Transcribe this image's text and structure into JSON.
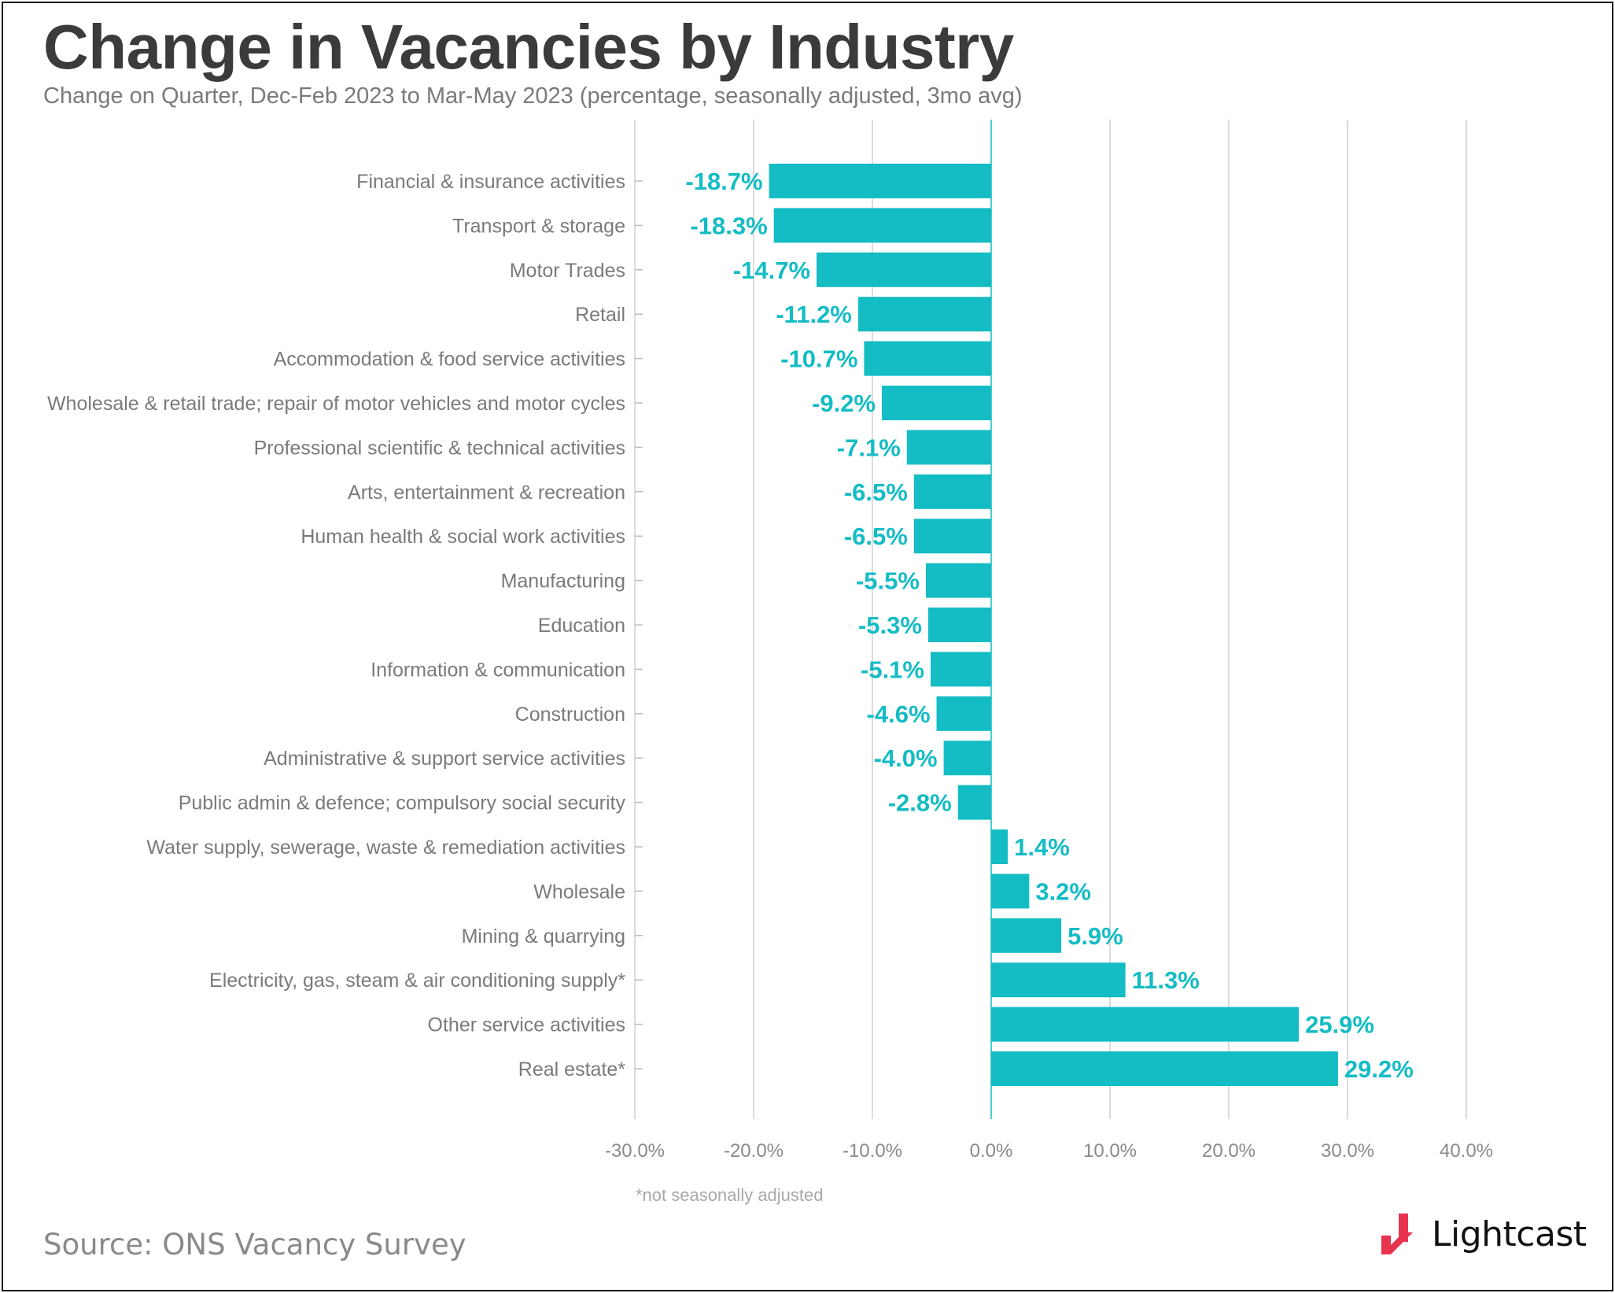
{
  "title": "Change in Vacancies by Industry",
  "subtitle": "Change on Quarter, Dec-Feb 2023 to Mar-May 2023 (percentage, seasonally adjusted, 3mo avg)",
  "footnote": "*not seasonally adjusted",
  "source": "Source: ONS Vacancy Survey",
  "brand": {
    "name": "Lightcast",
    "icon": "lightcast-logo-icon"
  },
  "colors": {
    "bar": "#14bcc4",
    "label": "#14bcc4",
    "grid": "#cfcfcf",
    "text": "#7a7a7a"
  },
  "chart_data": {
    "type": "bar",
    "orientation": "horizontal",
    "categories": [
      "Financial & insurance activities",
      "Transport & storage",
      "Motor Trades",
      "Retail",
      "Accommodation & food service activities",
      "Wholesale & retail trade; repair of motor vehicles and motor cycles",
      "Professional scientific & technical activities",
      "Arts, entertainment & recreation",
      "Human health & social work activities",
      "Manufacturing",
      "Education",
      "Information & communication",
      "Construction",
      "Administrative & support service activities",
      "Public admin & defence; compulsory social security",
      "Water supply, sewerage, waste & remediation activities",
      "Wholesale",
      "Mining & quarrying",
      "Electricity, gas, steam & air conditioning supply*",
      "Other service activities",
      "Real estate*"
    ],
    "values": [
      -18.7,
      -18.3,
      -14.7,
      -11.2,
      -10.7,
      -9.2,
      -7.1,
      -6.5,
      -6.5,
      -5.5,
      -5.3,
      -5.1,
      -4.6,
      -4.0,
      -2.8,
      1.4,
      3.2,
      5.9,
      11.3,
      25.9,
      29.2
    ],
    "data_labels": [
      "-18.7%",
      "-18.3%",
      "-14.7%",
      "-11.2%",
      "-10.7%",
      "-9.2%",
      "-7.1%",
      "-6.5%",
      "-6.5%",
      "-5.5%",
      "-5.3%",
      "-5.1%",
      "-4.6%",
      "-4.0%",
      "-2.8%",
      "1.4%",
      "3.2%",
      "5.9%",
      "11.3%",
      "25.9%",
      "29.2%"
    ],
    "xlim": [
      -30,
      40
    ],
    "xticks": [
      -30,
      -20,
      -10,
      0,
      10,
      20,
      30,
      40
    ],
    "xtick_labels": [
      "-30.0%",
      "-20.0%",
      "-10.0%",
      "0.0%",
      "10.0%",
      "20.0%",
      "30.0%",
      "40.0%"
    ],
    "grid": "vertical",
    "legend": "none"
  }
}
